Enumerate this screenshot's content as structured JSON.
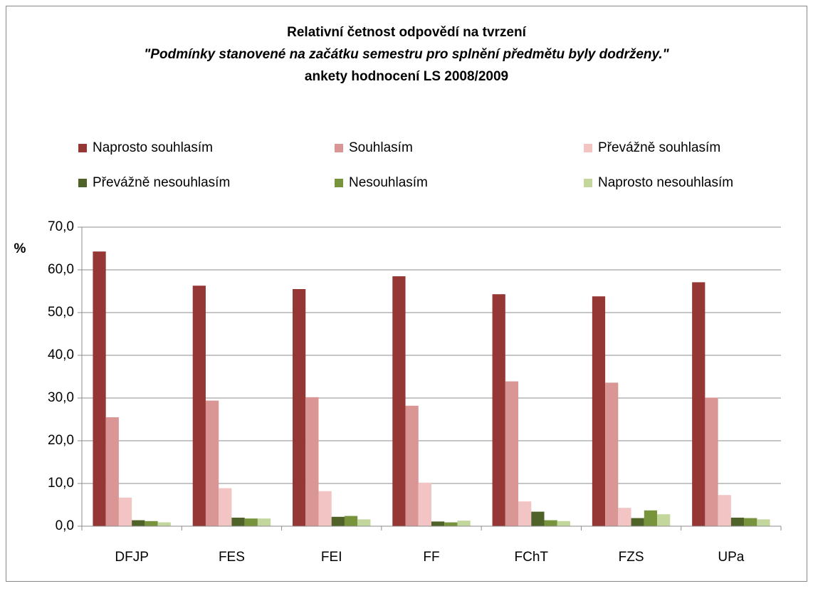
{
  "chart_data": {
    "type": "bar",
    "title": [
      "Relativní četnost odpovědí na tvrzení",
      "\"Podmínky stanovené na začátku semestru pro splnění předmětu byly dodrženy.\"",
      "ankety hodnocení LS 2008/2009"
    ],
    "y_label": "%",
    "categories": [
      "DFJP",
      "FES",
      "FEI",
      "FF",
      "FChT",
      "FZS",
      "UPa"
    ],
    "series": [
      {
        "name": "Naprosto souhlasím",
        "color": "#953735",
        "values": [
          64.3,
          56.3,
          55.5,
          58.5,
          54.3,
          53.8,
          57.1
        ]
      },
      {
        "name": "Souhlasím",
        "color": "#da9694",
        "values": [
          25.5,
          29.4,
          30.2,
          28.2,
          33.9,
          33.6,
          30.1
        ]
      },
      {
        "name": "Převážně souhlasím",
        "color": "#f2c4c4",
        "values": [
          6.7,
          8.9,
          8.2,
          10.2,
          5.8,
          4.3,
          7.3
        ]
      },
      {
        "name": "Převážně nesouhlasím",
        "color": "#4f6228",
        "values": [
          1.4,
          2.0,
          2.2,
          1.1,
          3.4,
          1.9,
          2.0
        ]
      },
      {
        "name": "Nesouhlasím",
        "color": "#77933c",
        "values": [
          1.2,
          1.8,
          2.4,
          0.9,
          1.4,
          3.7,
          1.9
        ]
      },
      {
        "name": "Naprosto nesouhlasím",
        "color": "#c3d69b",
        "values": [
          0.9,
          1.8,
          1.6,
          1.3,
          1.2,
          2.8,
          1.6
        ]
      }
    ],
    "ylim": [
      0,
      70
    ],
    "yticks": [
      {
        "value": 0,
        "label": "0,0"
      },
      {
        "value": 10,
        "label": "10,0"
      },
      {
        "value": 20,
        "label": "20,0"
      },
      {
        "value": 30,
        "label": "30,0"
      },
      {
        "value": 40,
        "label": "40,0"
      },
      {
        "value": 50,
        "label": "50,0"
      },
      {
        "value": 60,
        "label": "60,0"
      },
      {
        "value": 70,
        "label": "70,0"
      }
    ],
    "grid": true,
    "legend": "top"
  }
}
